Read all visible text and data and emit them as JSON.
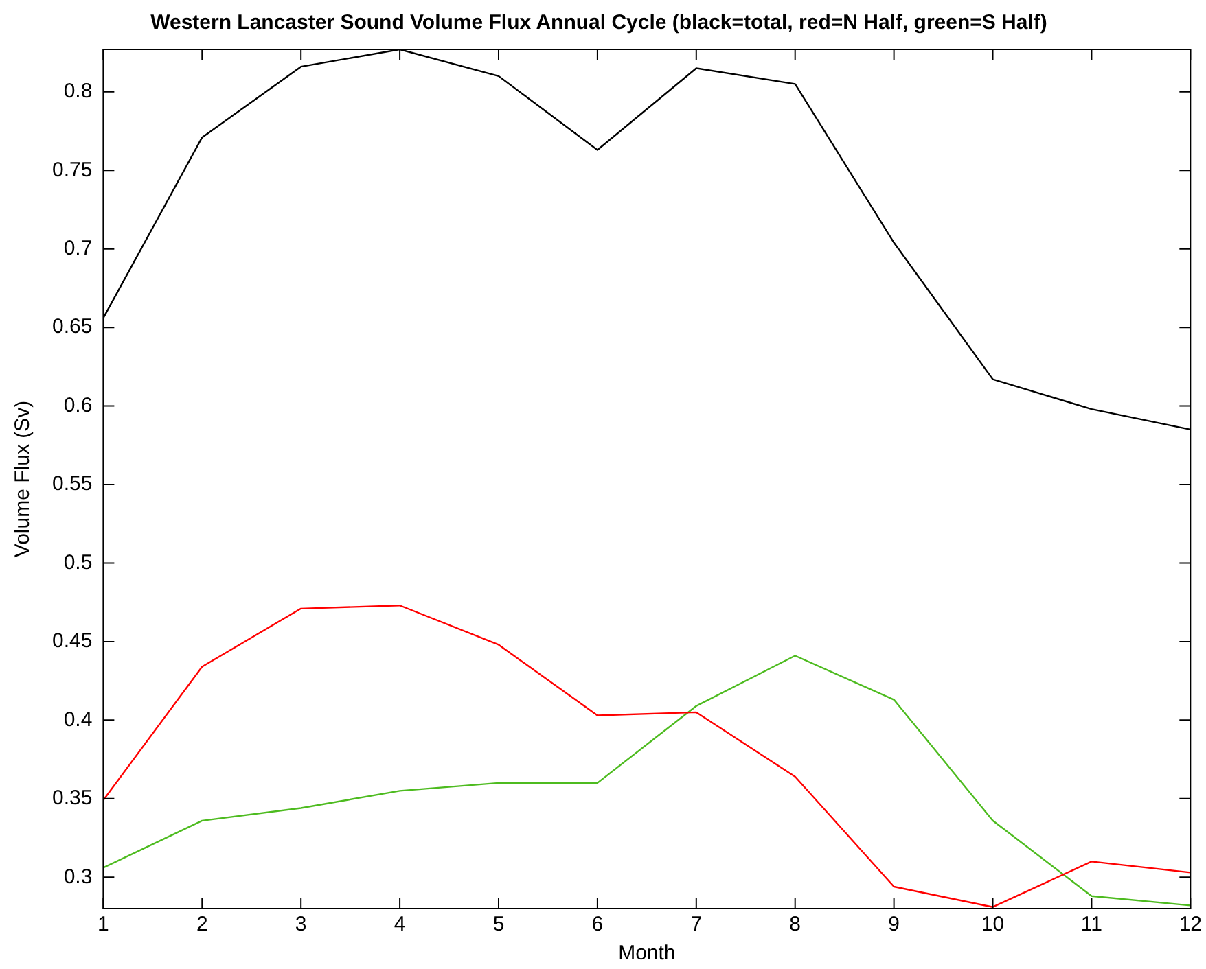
{
  "chart_data": {
    "type": "line",
    "title": "Western Lancaster Sound Volume Flux Annual Cycle (black=total, red=N Half, green=S Half)",
    "xlabel": "Month",
    "ylabel": "Volume Flux (Sv)",
    "x": [
      1,
      2,
      3,
      4,
      5,
      6,
      7,
      8,
      9,
      10,
      11,
      12
    ],
    "series": [
      {
        "color": "#000000",
        "values": [
          0.656,
          0.771,
          0.816,
          0.827,
          0.81,
          0.763,
          0.815,
          0.805,
          0.704,
          0.617,
          0.598,
          0.585
        ]
      },
      {
        "color": "#ff0000",
        "values": [
          0.349,
          0.434,
          0.471,
          0.473,
          0.448,
          0.403,
          0.405,
          0.364,
          0.294,
          0.281,
          0.31,
          0.303
        ]
      },
      {
        "color": "#4dbb1f",
        "values": [
          0.306,
          0.336,
          0.344,
          0.355,
          0.36,
          0.36,
          0.409,
          0.441,
          0.413,
          0.336,
          0.288,
          0.282
        ]
      }
    ],
    "xlim": [
      1,
      12
    ],
    "xticks": [
      1,
      2,
      3,
      4,
      5,
      6,
      7,
      8,
      9,
      10,
      11,
      12
    ],
    "ylim": [
      0.28,
      0.827
    ],
    "yticks": [
      0.3,
      0.35,
      0.4,
      0.45,
      0.5,
      0.55,
      0.6,
      0.65,
      0.7,
      0.75,
      0.8
    ],
    "grid": false,
    "legend": false,
    "marker": "none",
    "line_style": "solid"
  }
}
